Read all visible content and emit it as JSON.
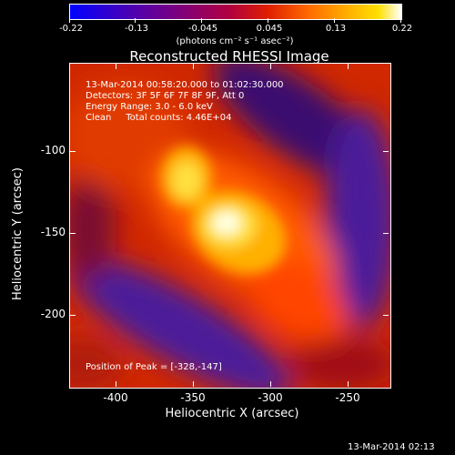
{
  "colorbar": {
    "ticks": [
      "-0.22",
      "-0.13",
      "-0.045",
      "0.045",
      "0.13",
      "0.22"
    ],
    "unit_label": "(photons cm⁻² s⁻¹ asec⁻²)"
  },
  "title": "Reconstructed RHESSI Image",
  "info": {
    "line1": "13-Mar-2014 00:58:20.000 to 01:02:30.000",
    "line2": "Detectors: 3F 5F 6F 7F 8F 9F, Att 0",
    "line3": "Energy Range: 3.0 - 6.0 keV",
    "line4": "Clean     Total counts: 4.46E+04"
  },
  "peak": "Position of Peak = [-328,-147]",
  "axes": {
    "xlabel": "Heliocentric X (arcsec)",
    "ylabel": "Heliocentric Y (arcsec)",
    "xticks": [
      "-400",
      "-350",
      "-300",
      "-250"
    ],
    "yticks": [
      "-100",
      "-150",
      "-200"
    ]
  },
  "footer": "13-Mar-2014 02:13",
  "colors": {
    "background": "#000000",
    "hot_core": "#ffffff",
    "hot_mid": "#ffd000",
    "warm": "#e03000",
    "cool": "#4b1a9a"
  }
}
